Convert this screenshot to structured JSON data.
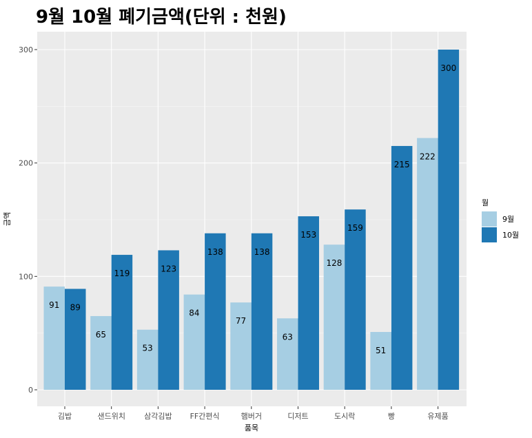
{
  "chart_data": {
    "type": "bar",
    "title": "9월 10월 폐기금액(단위 : 천원)",
    "xlabel": "품목",
    "ylabel": "금액",
    "categories": [
      "김밥",
      "샌드위치",
      "삼각김밥",
      "FF간편식",
      "햄버거",
      "디저트",
      "도시락",
      "빵",
      "유제품"
    ],
    "series": [
      {
        "name": "9월",
        "color": "#a6cee3",
        "values": [
          91,
          65,
          53,
          84,
          77,
          63,
          128,
          51,
          222
        ]
      },
      {
        "name": "10월",
        "color": "#1f78b4",
        "values": [
          89,
          119,
          123,
          138,
          138,
          153,
          159,
          215,
          300
        ]
      }
    ],
    "ylim": [
      0,
      300
    ],
    "yticks": [
      0,
      100,
      200,
      300
    ],
    "grid": true,
    "legend": {
      "title": "월",
      "position": "right"
    }
  }
}
